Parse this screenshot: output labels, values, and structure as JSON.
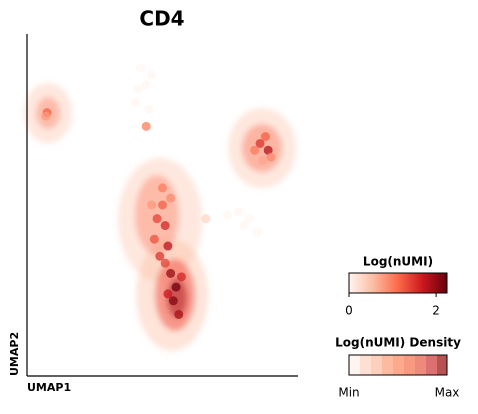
{
  "chart_data": {
    "type": "scatter",
    "title": "CD4",
    "xlabel": "UMAP1",
    "ylabel": "UMAP2",
    "xlim": [
      0,
      100
    ],
    "ylim": [
      0,
      100
    ],
    "x": [
      50,
      48,
      51,
      47,
      52,
      49,
      53,
      55,
      54,
      56,
      52,
      57,
      50,
      53,
      46,
      51,
      42,
      44,
      40,
      45,
      44,
      41,
      46,
      86,
      89,
      88,
      84,
      90,
      87,
      7.4,
      7,
      78,
      82,
      80,
      85,
      74,
      66
    ],
    "y": [
      50,
      46,
      44,
      40,
      38,
      35,
      30,
      26,
      22,
      18,
      24,
      29,
      55,
      52,
      50,
      33,
      90,
      85,
      80,
      78,
      73,
      84,
      88,
      68,
      66,
      70,
      66,
      64,
      63,
      77,
      76,
      48,
      46,
      44,
      42,
      47,
      46
    ],
    "values": [
      1.2,
      1.4,
      1.6,
      1.3,
      1.8,
      1.5,
      2.0,
      2.2,
      2.1,
      1.9,
      1.7,
      1.6,
      1.0,
      0.9,
      0.8,
      1.4,
      0,
      0,
      0,
      0,
      1,
      0,
      0,
      1.5,
      1.8,
      1.2,
      1.0,
      0.9,
      0.7,
      1.2,
      0.8,
      0,
      0,
      0,
      0,
      0,
      0.3
    ],
    "cmap": [
      "#fff5f0",
      "#fcbba1",
      "#fb6a4a",
      "#cb181d",
      "#67000d"
    ],
    "colorbar": {
      "title": "Log(nUMI)",
      "lim": [
        0,
        2.25
      ],
      "ticks": [
        0,
        2
      ]
    },
    "density_colorbar": {
      "title": "Log(nUMI) Density",
      "min_label": "Min",
      "max_label": "Max"
    }
  }
}
